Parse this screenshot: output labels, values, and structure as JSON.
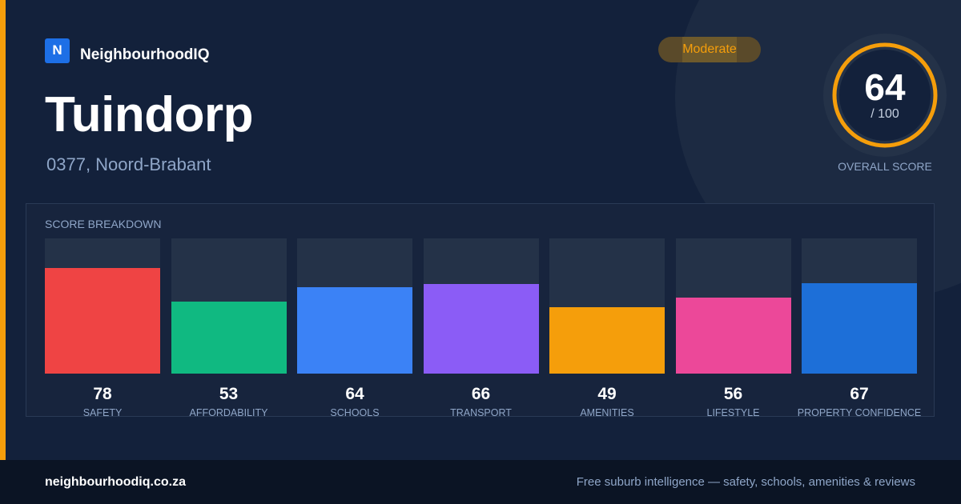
{
  "brand": {
    "logo_letter": "N",
    "name": "NeighbourhoodIQ"
  },
  "suburb": {
    "name": "Tuindorp",
    "location": "0377, Noord-Brabant"
  },
  "rating": {
    "label": "Moderate",
    "color": "#f59e0b"
  },
  "overall": {
    "score": "64",
    "score_value": 64,
    "max": "/ 100",
    "label": "OVERALL SCORE",
    "ring_color": "#f59e0b"
  },
  "breakdown": {
    "title": "SCORE BREAKDOWN",
    "items": [
      {
        "label": "SAFETY",
        "value": "78",
        "score": 78,
        "color": "#ef4444"
      },
      {
        "label": "AFFORDABILITY",
        "value": "53",
        "score": 53,
        "color": "#10b981"
      },
      {
        "label": "SCHOOLS",
        "value": "64",
        "score": 64,
        "color": "#3b82f6"
      },
      {
        "label": "TRANSPORT",
        "value": "66",
        "score": 66,
        "color": "#8b5cf6"
      },
      {
        "label": "AMENITIES",
        "value": "49",
        "score": 49,
        "color": "#f59e0b"
      },
      {
        "label": "LIFESTYLE",
        "value": "56",
        "score": 56,
        "color": "#ec4899"
      },
      {
        "label": "PROPERTY CONFIDENCE",
        "value": "67",
        "score": 67,
        "color": "#1d6fd8"
      }
    ]
  },
  "footer": {
    "url": "neighbourhoodiq.co.za",
    "tagline": "Free suburb intelligence — safety, schools, amenities & reviews"
  }
}
